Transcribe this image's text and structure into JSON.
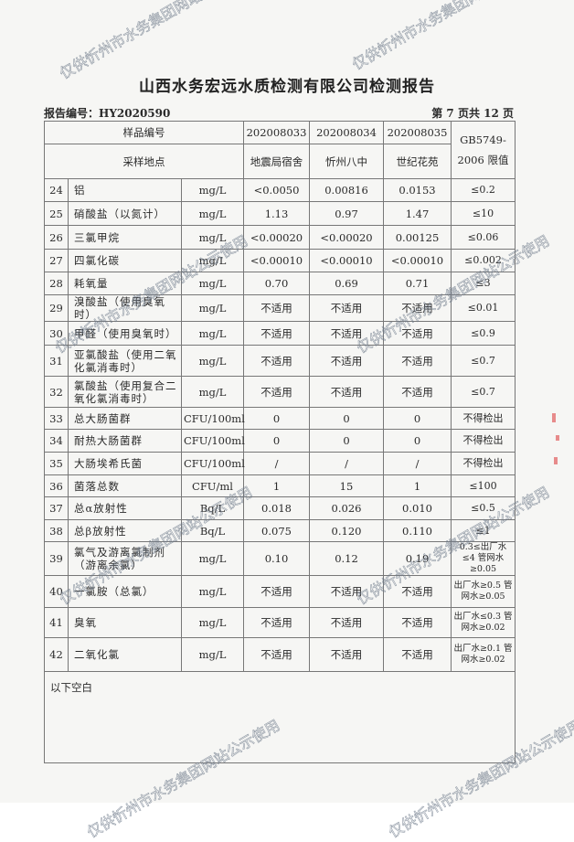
{
  "title": "山西水务宏远水质检测有限公司检测报告",
  "report_no": "报告编号：HY2020590",
  "page_no": "第 7 页共 12 页",
  "header": {
    "sample_no_label": "样品编号",
    "location_label": "采样地点",
    "samples": [
      "202008033",
      "202008034",
      "202008035"
    ],
    "locations": [
      "地震局宿舍",
      "忻州八中",
      "世纪花苑"
    ],
    "limit_label": "GB5749-2006 限值"
  },
  "rows": [
    {
      "no": "24",
      "name": "铝",
      "unit": "mg/L",
      "v": [
        "<0.0050",
        "0.00816",
        "0.0153"
      ],
      "limit": "≤0.2"
    },
    {
      "no": "25",
      "name": "硝酸盐（以氮计）",
      "unit": "mg/L",
      "v": [
        "1.13",
        "0.97",
        "1.47"
      ],
      "limit": "≤10"
    },
    {
      "no": "26",
      "name": "三氯甲烷",
      "unit": "mg/L",
      "v": [
        "<0.00020",
        "<0.00020",
        "0.00125"
      ],
      "limit": "≤0.06"
    },
    {
      "no": "27",
      "name": "四氯化碳",
      "unit": "mg/L",
      "v": [
        "<0.00010",
        "<0.00010",
        "<0.00010"
      ],
      "limit": "≤0.002"
    },
    {
      "no": "28",
      "name": "耗氧量",
      "unit": "mg/L",
      "v": [
        "0.70",
        "0.69",
        "0.71"
      ],
      "limit": "≤3"
    },
    {
      "no": "29",
      "name": "溴酸盐（使用臭氧时）",
      "unit": "mg/L",
      "v": [
        "不适用",
        "不适用",
        "不适用"
      ],
      "limit": "≤0.01"
    },
    {
      "no": "30",
      "name": "甲醛（使用臭氧时）",
      "unit": "mg/L",
      "v": [
        "不适用",
        "不适用",
        "不适用"
      ],
      "limit": "≤0.9"
    },
    {
      "no": "31",
      "name": "亚氯酸盐（使用二氧化氯消毒时）",
      "unit": "mg/L",
      "v": [
        "不适用",
        "不适用",
        "不适用"
      ],
      "limit": "≤0.7"
    },
    {
      "no": "32",
      "name": "氯酸盐（使用复合二氧化氯消毒时）",
      "unit": "mg/L",
      "v": [
        "不适用",
        "不适用",
        "不适用"
      ],
      "limit": "≤0.7"
    },
    {
      "no": "33",
      "name": "总大肠菌群",
      "unit": "CFU/100ml",
      "v": [
        "0",
        "0",
        "0"
      ],
      "limit": "不得检出"
    },
    {
      "no": "34",
      "name": "耐热大肠菌群",
      "unit": "CFU/100ml",
      "v": [
        "0",
        "0",
        "0"
      ],
      "limit": "不得检出"
    },
    {
      "no": "35",
      "name": "大肠埃希氏菌",
      "unit": "CFU/100ml",
      "v": [
        "/",
        "/",
        "/"
      ],
      "limit": "不得检出"
    },
    {
      "no": "36",
      "name": "菌落总数",
      "unit": "CFU/ml",
      "v": [
        "1",
        "15",
        "1"
      ],
      "limit": "≤100"
    },
    {
      "no": "37",
      "name": "总α放射性",
      "unit": "Bq/L",
      "v": [
        "0.018",
        "0.026",
        "0.010"
      ],
      "limit": "≤0.5"
    },
    {
      "no": "38",
      "name": "总β放射性",
      "unit": "Bq/L",
      "v": [
        "0.075",
        "0.120",
        "0.110"
      ],
      "limit": "≤1"
    },
    {
      "no": "39",
      "name": "氯气及游离氯制剂（游离余氯）",
      "unit": "mg/L",
      "v": [
        "0.10",
        "0.12",
        "0.19"
      ],
      "limit": "0.3≤出厂水≤4 管网水≥0.05"
    },
    {
      "no": "40",
      "name": "一氯胺（总氯）",
      "unit": "mg/L",
      "v": [
        "不适用",
        "不适用",
        "不适用"
      ],
      "limit": "出厂水≥0.5 管网水≥0.05"
    },
    {
      "no": "41",
      "name": "臭氧",
      "unit": "mg/L",
      "v": [
        "不适用",
        "不适用",
        "不适用"
      ],
      "limit": "出厂水≤0.3 管网水≥0.02"
    },
    {
      "no": "42",
      "name": "二氧化氯",
      "unit": "mg/L",
      "v": [
        "不适用",
        "不适用",
        "不适用"
      ],
      "limit": "出厂水≥0.1 管网水≥0.02"
    }
  ],
  "blank_note": "以下空白",
  "watermark": "仅供忻州市水务集团网站公示使用",
  "colors": {
    "watermark": "#6e7a8a",
    "stamp": "#d44444",
    "paper": "#f6f6f4"
  }
}
